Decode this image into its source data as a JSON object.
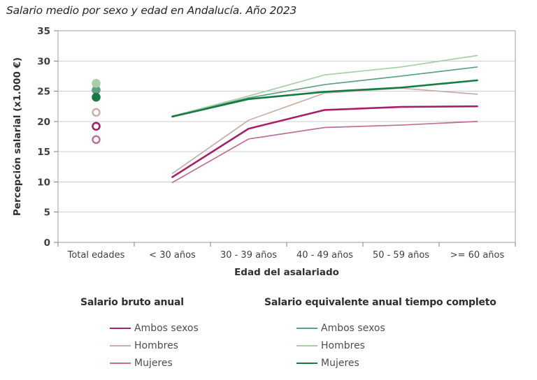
{
  "title": "Salario medio por sexo y edad en Andalucía. Año 2023",
  "chart_data": {
    "type": "line",
    "title": "Salario medio por sexo y edad en Andalucía. Año 2023",
    "xlabel": "Edad del asalariado",
    "ylabel": "Percepción salarial (x1.000 €)",
    "categories": [
      "Total edades",
      "< 30 años",
      "30 - 39 años",
      "40 - 49 años",
      "50 - 59 años",
      ">= 60 años"
    ],
    "ylim": [
      0,
      35
    ],
    "ytick_step": 5,
    "grid": true,
    "note": "Values at 'Total edades' are drawn as markers only (open circles = salario bruto anual, filled circles = salario equivalente); age-group values are drawn as lines.",
    "groups": [
      {
        "name": "Salario bruto anual",
        "marker_style": "open-circle",
        "series": [
          {
            "name": "Ambos sexos",
            "color": "#a5206a",
            "width": 2.6,
            "values": [
              19.2,
              10.8,
              18.8,
              21.9,
              22.4,
              22.5
            ]
          },
          {
            "name": "Hombres",
            "color": "#c9aea8",
            "width": 1.7,
            "values": [
              21.5,
              11.4,
              20.2,
              24.7,
              25.5,
              24.5
            ]
          },
          {
            "name": "Mujeres",
            "color": "#bf6e99",
            "width": 1.7,
            "values": [
              17.0,
              9.9,
              17.1,
              19.0,
              19.4,
              20.0
            ]
          }
        ]
      },
      {
        "name": "Salario equivalente anual tiempo completo",
        "marker_style": "filled-circle",
        "series": [
          {
            "name": "Ambos sexos",
            "color": "#5da182",
            "width": 1.7,
            "values": [
              25.2,
              20.9,
              23.9,
              26.1,
              27.5,
              29.0
            ]
          },
          {
            "name": "Hombres",
            "color": "#a7cfa7",
            "width": 1.7,
            "values": [
              26.3,
              20.9,
              24.2,
              27.7,
              29.0,
              30.9
            ]
          },
          {
            "name": "Mujeres",
            "color": "#177a42",
            "width": 2.6,
            "values": [
              24.0,
              20.8,
              23.7,
              24.9,
              25.6,
              26.8
            ]
          }
        ]
      }
    ]
  }
}
